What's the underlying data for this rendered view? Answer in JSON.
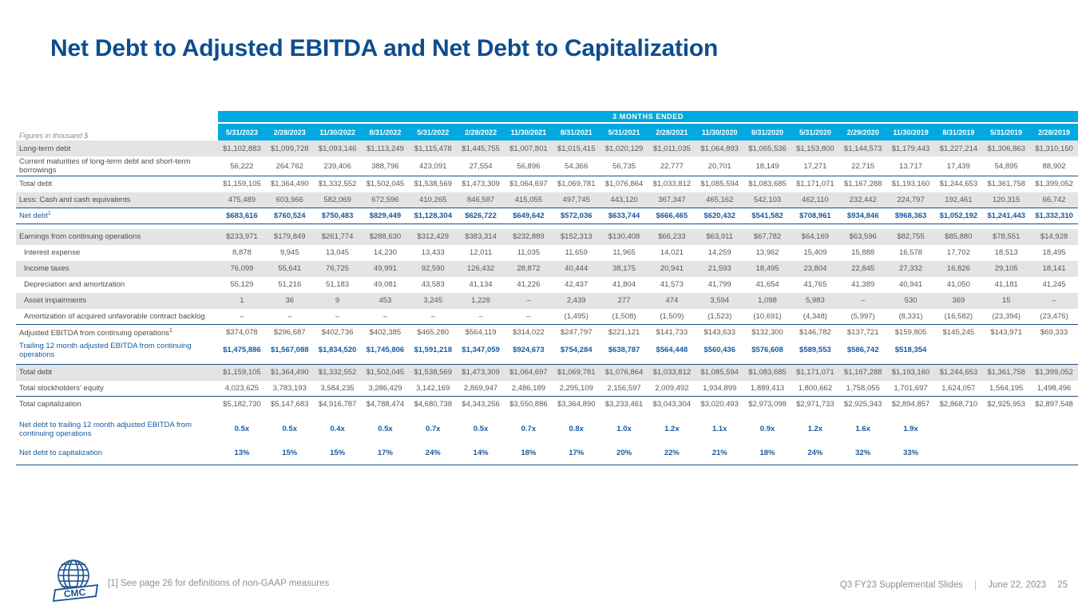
{
  "slide": {
    "title": "Net Debt to Adjusted EBITDA and Net Debt to Capitalization",
    "footnote": "[1] See page 26 for definitions of non-GAAP measures",
    "logo_text": "CMC",
    "footer": {
      "deck": "Q3 FY23 Supplemental Slides",
      "date": "June 22, 2023",
      "page": "25"
    },
    "accent_cyan": "#00a9e0",
    "accent_navy": "#0e4d8e",
    "accent_blue_text": "#185a9e"
  },
  "table": {
    "units_label": "Figures in thousand $",
    "header_band": "3 MONTHS ENDED",
    "columns": [
      "5/31/2023",
      "2/28/2023",
      "11/30/2022",
      "8/31/2022",
      "5/31/2022",
      "2/28/2022",
      "11/30/2021",
      "8/31/2021",
      "5/31/2021",
      "2/28/2021",
      "11/30/2020",
      "8/31/2020",
      "5/31/2020",
      "2/29/2020",
      "11/30/2019",
      "8/31/2019",
      "5/31/2019",
      "2/28/2019"
    ],
    "rows": [
      {
        "label": "Long-term debt",
        "shade": true,
        "values": [
          "$1,102,883",
          "$1,099,728",
          "$1,093,146",
          "$1,113,249",
          "$1,115,478",
          "$1,445,755",
          "$1,007,801",
          "$1,015,415",
          "$1,020,129",
          "$1,011,035",
          "$1,064,893",
          "$1,065,536",
          "$1,153,800",
          "$1,144,573",
          "$1,179,443",
          "$1,227,214",
          "$1,306,863",
          "$1,310,150"
        ]
      },
      {
        "label": "Current maturities of long-term debt and short-term borrowings",
        "values": [
          "56,222",
          "264,762",
          "239,406",
          "388,796",
          "423,091",
          "27,554",
          "56,896",
          "54,366",
          "56,735",
          "22,777",
          "20,701",
          "18,149",
          "17,271",
          "22,715",
          "13,717",
          "17,439",
          "54,895",
          "88,902"
        ]
      },
      {
        "label": "Total debt",
        "border_top": true,
        "values": [
          "$1,159,105",
          "$1,364,490",
          "$1,332,552",
          "$1,502,045",
          "$1,538,569",
          "$1,473,309",
          "$1,064,697",
          "$1,069,781",
          "$1,076,864",
          "$1,033,812",
          "$1,085,594",
          "$1,083,685",
          "$1,171,071",
          "$1,167,288",
          "$1,193,160",
          "$1,244,653",
          "$1,361,758",
          "$1,399,052"
        ]
      },
      {
        "label": "Less: Cash and cash equivalents",
        "shade": true,
        "values": [
          "475,489",
          "603,966",
          "582,069",
          "672,596",
          "410,265",
          "846,587",
          "415,055",
          "497,745",
          "443,120",
          "367,347",
          "465,162",
          "542,103",
          "462,110",
          "232,442",
          "224,797",
          "192,461",
          "120,315",
          "66,742"
        ]
      },
      {
        "label": "Net debt",
        "label_sup": "1",
        "blue": true,
        "bold_vals": true,
        "border_top": true,
        "border_bottom": true,
        "values": [
          "$683,616",
          "$760,524",
          "$750,483",
          "$829,449",
          "$1,128,304",
          "$626,722",
          "$649,642",
          "$572,036",
          "$633,744",
          "$666,465",
          "$620,432",
          "$541,582",
          "$708,961",
          "$934,846",
          "$968,363",
          "$1,052,192",
          "$1,241,443",
          "$1,332,310"
        ]
      },
      {
        "label": "Earnings from continuing operations",
        "shade": true,
        "gap_before": true,
        "values": [
          "$233,971",
          "$179,849",
          "$261,774",
          "$288,630",
          "$312,429",
          "$383,314",
          "$232,889",
          "$152,313",
          "$130,408",
          "$66,233",
          "$63,911",
          "$67,782",
          "$64,169",
          "$63,596",
          "$82,755",
          "$85,880",
          "$78,551",
          "$14,928"
        ]
      },
      {
        "label": "Interest expense",
        "indent": true,
        "values": [
          "8,878",
          "9,945",
          "13,045",
          "14,230",
          "13,433",
          "12,011",
          "11,035",
          "11,659",
          "11,965",
          "14,021",
          "14,259",
          "13,962",
          "15,409",
          "15,888",
          "16,578",
          "17,702",
          "18,513",
          "18,495"
        ]
      },
      {
        "label": "Income taxes",
        "indent": true,
        "shade": true,
        "values": [
          "76,099",
          "55,641",
          "76,725",
          "49,991",
          "92,590",
          "126,432",
          "28,872",
          "40,444",
          "38,175",
          "20,941",
          "21,593",
          "18,495",
          "23,804",
          "22,845",
          "27,332",
          "16,826",
          "29,105",
          "18,141"
        ]
      },
      {
        "label": "Depreciation and amortization",
        "indent": true,
        "values": [
          "55,129",
          "51,216",
          "51,183",
          "49,081",
          "43,583",
          "41,134",
          "41,226",
          "42,437",
          "41,804",
          "41,573",
          "41,799",
          "41,654",
          "41,765",
          "41,389",
          "40,941",
          "41,050",
          "41,181",
          "41,245"
        ]
      },
      {
        "label": "Asset impairments",
        "indent": true,
        "shade": true,
        "values": [
          "1",
          "36",
          "9",
          "453",
          "3,245",
          "1,228",
          "–",
          "2,439",
          "277",
          "474",
          "3,594",
          "1,098",
          "5,983",
          "–",
          "530",
          "369",
          "15",
          "–"
        ]
      },
      {
        "label": "Amortization of acquired unfavorable contract backlog",
        "indent": true,
        "values": [
          "–",
          "–",
          "–",
          "–",
          "–",
          "–",
          "–",
          "(1,495)",
          "(1,508)",
          "(1,509)",
          "(1,523)",
          "(10,691)",
          "(4,348)",
          "(5,997)",
          "(8,331)",
          "(16,582)",
          "(23,394)",
          "(23,476)"
        ]
      },
      {
        "label": "Adjusted EBITDA from continuing operations",
        "label_sup": "1",
        "border_top": true,
        "values": [
          "$374,078",
          "$296,687",
          "$402,736",
          "$402,385",
          "$465,280",
          "$564,119",
          "$314,022",
          "$247,797",
          "$221,121",
          "$141,733",
          "$143,633",
          "$132,300",
          "$146,782",
          "$137,721",
          "$159,805",
          "$145,245",
          "$143,971",
          "$69,333"
        ]
      },
      {
        "label": "Trailing 12 month adjusted EBITDA from continuing operations",
        "blue": true,
        "bold_vals": true,
        "values": [
          "$1,475,886",
          "$1,567,088",
          "$1,834,520",
          "$1,745,806",
          "$1,591,218",
          "$1,347,059",
          "$924,673",
          "$754,284",
          "$638,787",
          "$564,448",
          "$560,436",
          "$576,608",
          "$589,553",
          "$586,742",
          "$518,354",
          "",
          "",
          ""
        ]
      },
      {
        "label": "Total debt",
        "shade": true,
        "border_top": true,
        "gap_before": true,
        "values": [
          "$1,159,105",
          "$1,364,490",
          "$1,332,552",
          "$1,502,045",
          "$1,538,569",
          "$1,473,309",
          "$1,064,697",
          "$1,069,781",
          "$1,076,864",
          "$1,033,812",
          "$1,085,594",
          "$1,083,685",
          "$1,171,071",
          "$1,167,288",
          "$1,193,160",
          "$1,244,653",
          "$1,361,758",
          "$1,399,052"
        ]
      },
      {
        "label": "Total stockholders' equity",
        "values": [
          "4,023,625",
          "3,783,193",
          "3,584,235",
          "3,286,429",
          "3,142,169",
          "2,869,947",
          "2,486,189",
          "2,295,109",
          "2,156,597",
          "2,009,492",
          "1,934,899",
          "1,889,413",
          "1,800,662",
          "1,758,055",
          "1,701,697",
          "1,624,057",
          "1,564,195",
          "1,498,496"
        ]
      },
      {
        "label": "Total capitalization",
        "border_top": true,
        "values": [
          "$5,182,730",
          "$5,147,683",
          "$4,916,787",
          "$4,788,474",
          "$4,680,738",
          "$4,343,256",
          "$3,550,886",
          "$3,364,890",
          "$3,233,461",
          "$3,043,304",
          "$3,020,493",
          "$2,973,098",
          "$2,971,733",
          "$2,925,343",
          "$2,894,857",
          "$2,868,710",
          "$2,925,953",
          "$2,897,548"
        ]
      },
      {
        "label": "Net debt to trailing 12 month adjusted EBITDA from continuing operations",
        "blue": true,
        "bold_vals": true,
        "tall": true,
        "gap_before": true,
        "values": [
          "0.5x",
          "0.5x",
          "0.4x",
          "0.5x",
          "0.7x",
          "0.5x",
          "0.7x",
          "0.8x",
          "1.0x",
          "1.2x",
          "1.1x",
          "0.9x",
          "1.2x",
          "1.6x",
          "1.9x",
          "",
          "",
          ""
        ]
      },
      {
        "label": "Net debt to capitalization",
        "blue": true,
        "bold_vals": true,
        "tall": true,
        "border_bottom": true,
        "values": [
          "13%",
          "15%",
          "15%",
          "17%",
          "24%",
          "14%",
          "18%",
          "17%",
          "20%",
          "22%",
          "21%",
          "18%",
          "24%",
          "32%",
          "33%",
          "",
          "",
          ""
        ]
      }
    ]
  }
}
